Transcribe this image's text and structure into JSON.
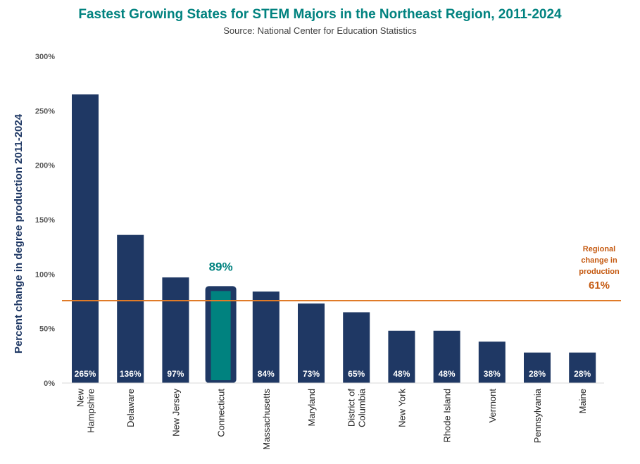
{
  "chart_data": {
    "type": "bar",
    "title": "Fastest Growing States for STEM Majors in the Northeast Region, 2011-2024",
    "subtitle": "Source: National Center for Education Statistics",
    "ylabel": "Percent  change in degree production 2011-2024",
    "xlabel": "",
    "ylim": [
      0,
      300
    ],
    "yticks": [
      0,
      50,
      100,
      150,
      200,
      250,
      300
    ],
    "ytick_labels": [
      "0%",
      "50%",
      "100%",
      "150%",
      "200%",
      "250%",
      "300%"
    ],
    "categories": [
      [
        "New",
        "Hampshire"
      ],
      [
        "Delaware"
      ],
      [
        "New Jersey"
      ],
      [
        "Connecticut"
      ],
      [
        "Massachusetts"
      ],
      [
        "Maryland"
      ],
      [
        "District of",
        "Columbia"
      ],
      [
        "New York"
      ],
      [
        "Rhode Island"
      ],
      [
        "Vermont"
      ],
      [
        "Pennsylvania"
      ],
      [
        "Maine"
      ]
    ],
    "values": [
      265,
      136,
      97,
      89,
      84,
      73,
      65,
      48,
      48,
      38,
      28,
      28
    ],
    "data_labels": [
      "265%",
      "136%",
      "97%",
      "",
      "84%",
      "73%",
      "65%",
      "48%",
      "48%",
      "38%",
      "28%",
      "28%"
    ],
    "highlight": {
      "index": 3,
      "label": "89%"
    },
    "reference_line": {
      "value": 61,
      "label_lines": [
        "Regional",
        "change in",
        "production"
      ],
      "value_label": "61%"
    },
    "grid": false,
    "legend": "none",
    "colors": {
      "bar": "#1f3864",
      "highlight_fill": "#00827f",
      "title": "#00827f",
      "reference_line": "#e07b28",
      "reference_text": "#c55a11",
      "axis_label": "#1f3864"
    }
  }
}
